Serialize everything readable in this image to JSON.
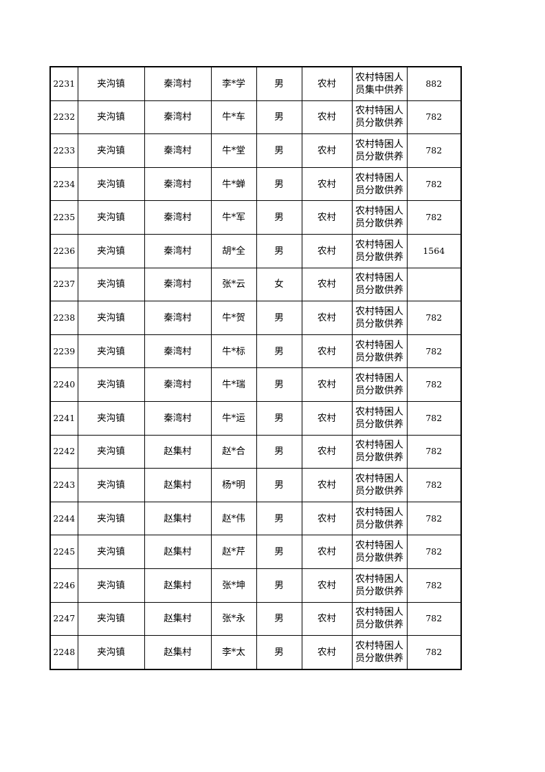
{
  "rows": [
    {
      "id": "2231",
      "town": "夹沟镇",
      "village": "秦湾村",
      "name": "李*学",
      "gender": "男",
      "area": "农村",
      "category": "农村特困人员集中供养",
      "amount": "882"
    },
    {
      "id": "2232",
      "town": "夹沟镇",
      "village": "秦湾村",
      "name": "牛*车",
      "gender": "男",
      "area": "农村",
      "category": "农村特困人员分散供养",
      "amount": "782"
    },
    {
      "id": "2233",
      "town": "夹沟镇",
      "village": "秦湾村",
      "name": "牛*堂",
      "gender": "男",
      "area": "农村",
      "category": "农村特困人员分散供养",
      "amount": "782"
    },
    {
      "id": "2234",
      "town": "夹沟镇",
      "village": "秦湾村",
      "name": "牛*蝉",
      "gender": "男",
      "area": "农村",
      "category": "农村特困人员分散供养",
      "amount": "782"
    },
    {
      "id": "2235",
      "town": "夹沟镇",
      "village": "秦湾村",
      "name": "牛*军",
      "gender": "男",
      "area": "农村",
      "category": "农村特困人员分散供养",
      "amount": "782"
    },
    {
      "id": "2236",
      "town": "夹沟镇",
      "village": "秦湾村",
      "name": "胡*全",
      "gender": "男",
      "area": "农村",
      "category": "农村特困人员分散供养",
      "amount": "1564"
    },
    {
      "id": "2237",
      "town": "夹沟镇",
      "village": "秦湾村",
      "name": "张*云",
      "gender": "女",
      "area": "农村",
      "category": "农村特困人员分散供养",
      "amount": ""
    },
    {
      "id": "2238",
      "town": "夹沟镇",
      "village": "秦湾村",
      "name": "牛*贺",
      "gender": "男",
      "area": "农村",
      "category": "农村特困人员分散供养",
      "amount": "782"
    },
    {
      "id": "2239",
      "town": "夹沟镇",
      "village": "秦湾村",
      "name": "牛*标",
      "gender": "男",
      "area": "农村",
      "category": "农村特困人员分散供养",
      "amount": "782"
    },
    {
      "id": "2240",
      "town": "夹沟镇",
      "village": "秦湾村",
      "name": "牛*瑞",
      "gender": "男",
      "area": "农村",
      "category": "农村特困人员分散供养",
      "amount": "782"
    },
    {
      "id": "2241",
      "town": "夹沟镇",
      "village": "秦湾村",
      "name": "牛*运",
      "gender": "男",
      "area": "农村",
      "category": "农村特困人员分散供养",
      "amount": "782"
    },
    {
      "id": "2242",
      "town": "夹沟镇",
      "village": "赵集村",
      "name": "赵*合",
      "gender": "男",
      "area": "农村",
      "category": "农村特困人员分散供养",
      "amount": "782"
    },
    {
      "id": "2243",
      "town": "夹沟镇",
      "village": "赵集村",
      "name": "杨*明",
      "gender": "男",
      "area": "农村",
      "category": "农村特困人员分散供养",
      "amount": "782"
    },
    {
      "id": "2244",
      "town": "夹沟镇",
      "village": "赵集村",
      "name": "赵*伟",
      "gender": "男",
      "area": "农村",
      "category": "农村特困人员分散供养",
      "amount": "782"
    },
    {
      "id": "2245",
      "town": "夹沟镇",
      "village": "赵集村",
      "name": "赵*芹",
      "gender": "男",
      "area": "农村",
      "category": "农村特困人员分散供养",
      "amount": "782"
    },
    {
      "id": "2246",
      "town": "夹沟镇",
      "village": "赵集村",
      "name": "张*坤",
      "gender": "男",
      "area": "农村",
      "category": "农村特困人员分散供养",
      "amount": "782"
    },
    {
      "id": "2247",
      "town": "夹沟镇",
      "village": "赵集村",
      "name": "张*永",
      "gender": "男",
      "area": "农村",
      "category": "农村特困人员分散供养",
      "amount": "782"
    },
    {
      "id": "2248",
      "town": "夹沟镇",
      "village": "赵集村",
      "name": "李*太",
      "gender": "男",
      "area": "农村",
      "category": "农村特困人员分散供养",
      "amount": "782"
    }
  ]
}
